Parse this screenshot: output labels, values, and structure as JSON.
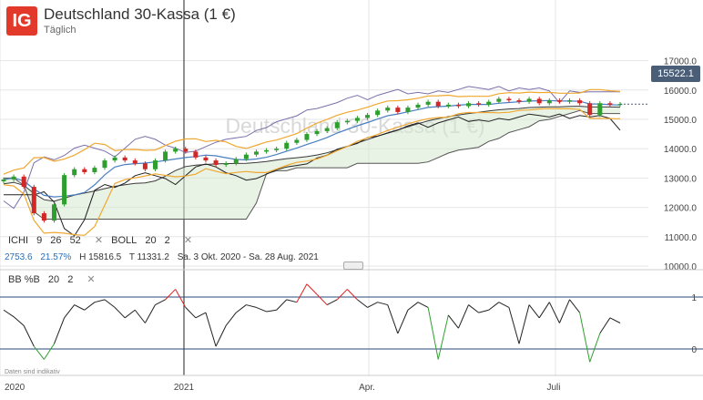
{
  "instrument": {
    "logo_text": "IG",
    "title": "Deutschland 30-Kassa (1 €)",
    "interval": "Täglich",
    "watermark": "Deutschland 30-Kassa (1 €)",
    "current_price": "15522.1"
  },
  "indicators": {
    "ichi": {
      "name": "ICHI",
      "p1": "9",
      "p2": "26",
      "p3": "52",
      "close": "✕"
    },
    "boll": {
      "name": "BOLL",
      "p1": "20",
      "p2": "2",
      "close": "✕"
    },
    "bbpb": {
      "name": "BB %B",
      "p1": "20",
      "p2": "2",
      "close": "✕"
    }
  },
  "stats": {
    "change": "2753.6",
    "change_pct": "21.57%",
    "high": "H 15816.5",
    "low": "T 11331.2",
    "range": "Sa. 3 Okt. 2020 - Sa. 28 Aug. 2021"
  },
  "disclaimer": "Daten sind indikativ",
  "colors": {
    "candle_up": "#2e9e2e",
    "candle_down": "#d22727",
    "boll_band": "#f0a830",
    "boll_mid": "#4a7fc0",
    "ichimoku_envelope": "#7b6faa",
    "ichimoku_cloud": "#d6e8d0",
    "price_tag": "#4a5e78",
    "bb_overbought": "#e02020",
    "bb_oversold": "#2ea02e",
    "logo": "#e3392b"
  },
  "chart_data": [
    {
      "type": "candlestick",
      "title": "Deutschland 30-Kassa (1 €)",
      "y_ticks": [
        "17000.0",
        "16000.0",
        "15000.0",
        "14000.0",
        "13000.0",
        "12000.0",
        "11000.0",
        "10000.0"
      ],
      "ylim": [
        10000,
        17000
      ],
      "x_ticks": [
        "2020",
        "2021",
        "Apr.",
        "Juli"
      ],
      "grid": true,
      "close_series": [
        12950,
        13050,
        12700,
        11800,
        11550,
        12100,
        13100,
        13300,
        13200,
        13350,
        13600,
        13700,
        13600,
        13500,
        13300,
        13600,
        13900,
        14000,
        13900,
        13700,
        13600,
        13450,
        13500,
        13650,
        13800,
        13900,
        13950,
        14000,
        14200,
        14300,
        14500,
        14600,
        14700,
        14900,
        14950,
        15050,
        15150,
        15300,
        15400,
        15250,
        15400,
        15500,
        15600,
        15450,
        15500,
        15450,
        15550,
        15500,
        15600,
        15700,
        15650,
        15600,
        15700,
        15550,
        15650,
        15600,
        15650,
        15550,
        15150,
        15550,
        15500,
        15522
      ]
    },
    {
      "type": "line",
      "title": "BB %B 20 2",
      "y_ticks": [
        "1",
        "0"
      ],
      "ylim": [
        -0.4,
        1.3
      ],
      "values": [
        0.75,
        0.62,
        0.45,
        0.05,
        -0.2,
        0.1,
        0.6,
        0.85,
        0.75,
        0.9,
        0.95,
        0.8,
        0.6,
        0.75,
        0.5,
        0.85,
        0.95,
        1.15,
        0.8,
        0.6,
        0.7,
        0.05,
        0.45,
        0.7,
        0.85,
        0.8,
        0.72,
        0.75,
        0.95,
        0.9,
        1.25,
        1.05,
        0.85,
        0.95,
        1.15,
        0.95,
        0.8,
        0.9,
        0.85,
        0.3,
        0.75,
        0.9,
        0.8,
        -0.2,
        0.65,
        0.4,
        0.85,
        0.7,
        0.75,
        0.9,
        0.8,
        0.1,
        0.85,
        0.6,
        0.9,
        0.5,
        0.95,
        0.7,
        -0.25,
        0.3,
        0.6,
        0.5
      ]
    }
  ]
}
